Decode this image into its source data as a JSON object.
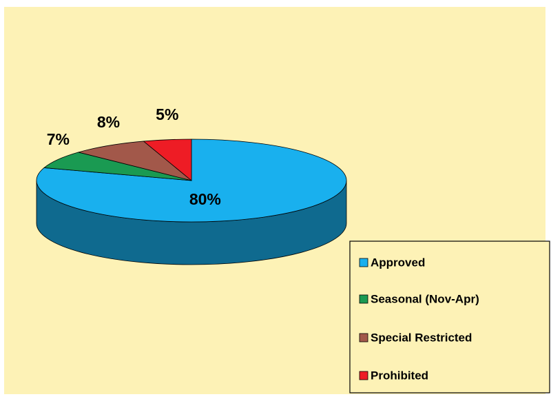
{
  "chart_data": {
    "type": "pie3d",
    "categories": [
      "Approved",
      "Seasonal (Nov-Apr)",
      "Special Restricted",
      "Prohibited"
    ],
    "values": [
      80,
      7,
      8,
      5
    ],
    "value_labels": [
      "80%",
      "7%",
      "8%",
      "5%"
    ],
    "colors": [
      "#19b0ee",
      "#1a9a52",
      "#a2584a",
      "#ee1c25"
    ],
    "legend": "bottom-right"
  }
}
